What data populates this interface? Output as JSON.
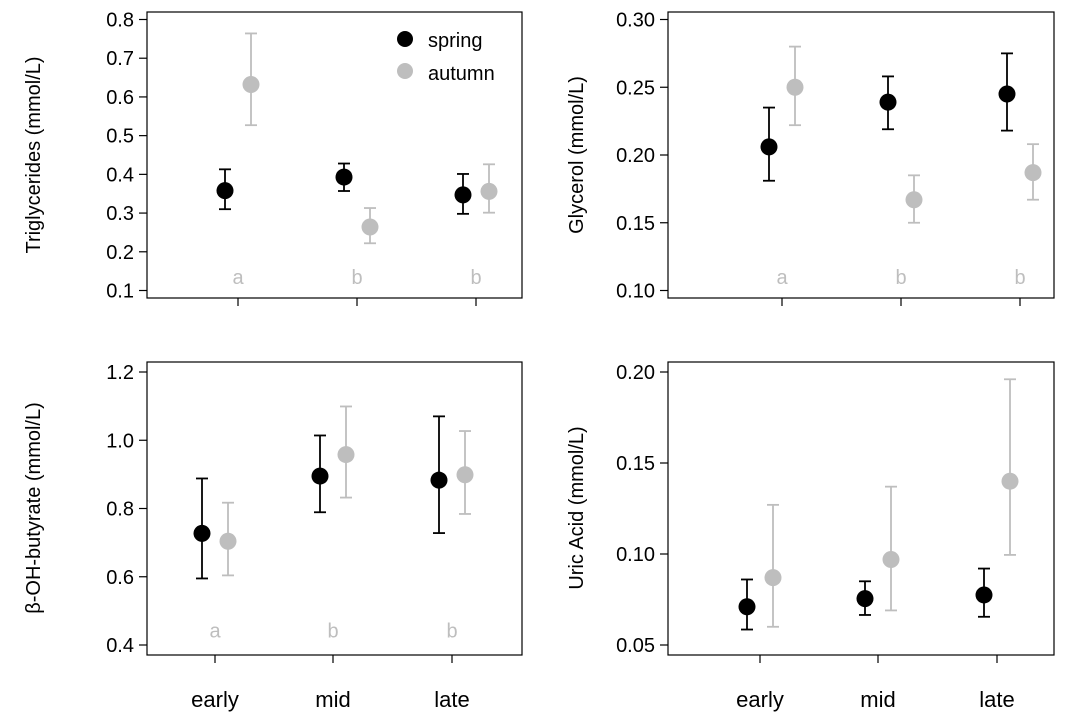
{
  "figure": {
    "legend": {
      "items": [
        {
          "label": "spring",
          "color": "#000000"
        },
        {
          "label": "autumn",
          "color": "#bebebe"
        }
      ],
      "placement": "top-right of first panel"
    },
    "colors": {
      "spring": "#000000",
      "autumn": "#bebebe",
      "letters": "#bebebe",
      "axis": "#000000"
    }
  },
  "chart_data": [
    {
      "type": "scatter",
      "panel": "top-left",
      "ylabel": "Triglycerides (mmol/L)",
      "xlabel": "",
      "categories": [
        "early",
        "mid",
        "late"
      ],
      "show_xticklabels": false,
      "ylim": [
        0.1,
        0.8
      ],
      "yticks": [
        "0.1",
        "0.2",
        "0.3",
        "0.4",
        "0.5",
        "0.6",
        "0.7",
        "0.8"
      ],
      "series": [
        {
          "name": "spring",
          "values": [
            0.358,
            0.393,
            0.347
          ],
          "lower": [
            0.31,
            0.357,
            0.298
          ],
          "upper": [
            0.413,
            0.428,
            0.401
          ]
        },
        {
          "name": "autumn",
          "values": [
            0.632,
            0.264,
            0.356
          ],
          "lower": [
            0.527,
            0.222,
            0.301
          ],
          "upper": [
            0.764,
            0.313,
            0.426
          ]
        }
      ],
      "annotations": [
        "a",
        "b",
        "b"
      ],
      "annotation_y": 0.135
    },
    {
      "type": "scatter",
      "panel": "top-right",
      "ylabel": "Glycerol (mmol/L)",
      "xlabel": "",
      "categories": [
        "early",
        "mid",
        "late"
      ],
      "show_xticklabels": false,
      "ylim": [
        0.1,
        0.3
      ],
      "yticks": [
        "0.10",
        "0.15",
        "0.20",
        "0.25",
        "0.30"
      ],
      "series": [
        {
          "name": "spring",
          "values": [
            0.206,
            0.239,
            0.245
          ],
          "lower": [
            0.181,
            0.219,
            0.218
          ],
          "upper": [
            0.235,
            0.258,
            0.275
          ]
        },
        {
          "name": "autumn",
          "values": [
            0.25,
            0.167,
            0.187
          ],
          "lower": [
            0.222,
            0.15,
            0.167
          ],
          "upper": [
            0.28,
            0.185,
            0.208
          ]
        }
      ],
      "annotations": [
        "a",
        "b",
        "b"
      ],
      "annotation_y": 0.11
    },
    {
      "type": "scatter",
      "panel": "bottom-left",
      "ylabel": "β-OH-butyrate (mmol/L)",
      "xlabel": "",
      "categories": [
        "early",
        "mid",
        "late"
      ],
      "show_xticklabels": true,
      "ylim": [
        0.4,
        1.2
      ],
      "yticks": [
        "0.4",
        "0.6",
        "0.8",
        "1.0",
        "1.2"
      ],
      "series": [
        {
          "name": "spring",
          "values": [
            0.727,
            0.895,
            0.883
          ],
          "lower": [
            0.595,
            0.789,
            0.728
          ],
          "upper": [
            0.888,
            1.014,
            1.07
          ]
        },
        {
          "name": "autumn",
          "values": [
            0.704,
            0.958,
            0.899
          ],
          "lower": [
            0.604,
            0.832,
            0.784
          ],
          "upper": [
            0.817,
            1.099,
            1.027
          ]
        }
      ],
      "annotations": [
        "a",
        "b",
        "b"
      ],
      "annotation_y": 0.443
    },
    {
      "type": "scatter",
      "panel": "bottom-right",
      "ylabel": "Uric Acid (mmol/L)",
      "xlabel": "",
      "categories": [
        "early",
        "mid",
        "late"
      ],
      "show_xticklabels": true,
      "ylim": [
        0.05,
        0.2
      ],
      "yticks": [
        "0.05",
        "0.10",
        "0.15",
        "0.20"
      ],
      "series": [
        {
          "name": "spring",
          "values": [
            0.071,
            0.0755,
            0.0775
          ],
          "lower": [
            0.0585,
            0.0665,
            0.0655
          ],
          "upper": [
            0.086,
            0.085,
            0.092
          ]
        },
        {
          "name": "autumn",
          "values": [
            0.087,
            0.097,
            0.14
          ],
          "lower": [
            0.06,
            0.069,
            0.0995
          ],
          "upper": [
            0.127,
            0.137,
            0.196
          ]
        }
      ],
      "annotations": [],
      "annotation_y": null
    }
  ]
}
